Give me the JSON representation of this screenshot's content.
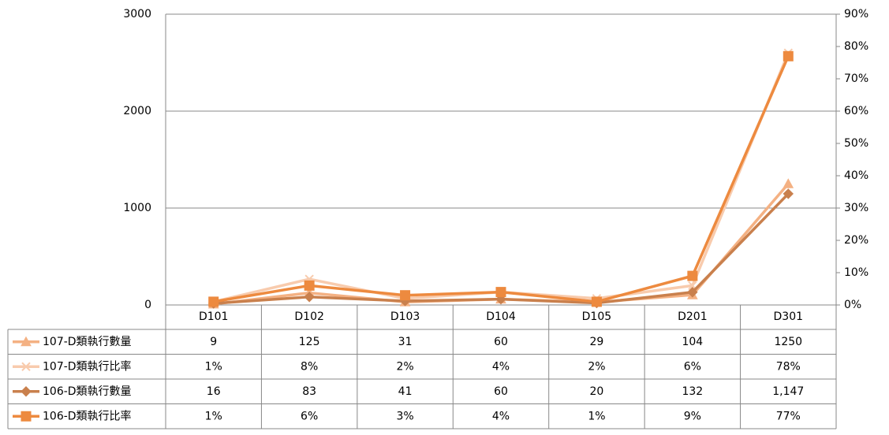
{
  "chart_data": {
    "type": "line",
    "categories": [
      "D101",
      "D102",
      "D103",
      "D104",
      "D105",
      "D201",
      "D301"
    ],
    "ylim": [
      0,
      3000
    ],
    "yticks": [
      0,
      1000,
      2000,
      3000
    ],
    "y2lim": [
      0,
      90
    ],
    "y2ticks": [
      {
        "value": 0,
        "label": "0%"
      },
      {
        "value": 10,
        "label": "10%"
      },
      {
        "value": 20,
        "label": "20%"
      },
      {
        "value": 30,
        "label": "30%"
      },
      {
        "value": 40,
        "label": "40%"
      },
      {
        "value": 50,
        "label": "50%"
      },
      {
        "value": 60,
        "label": "60%"
      },
      {
        "value": 70,
        "label": "70%"
      },
      {
        "value": 80,
        "label": "80%"
      },
      {
        "value": 90,
        "label": "90%"
      }
    ],
    "grid": true,
    "series": [
      {
        "name": "107-D類執行數量",
        "color": "#f4b183",
        "marker": "triangle",
        "values": [
          9,
          125,
          31,
          60,
          29,
          104,
          1250
        ]
      },
      {
        "name": "107-D類執行比率",
        "color": "#f8cbad",
        "marker": "x",
        "axis": "y2",
        "values": [
          1,
          8,
          2,
          4,
          2,
          6,
          78
        ],
        "value_labels": [
          "1%",
          "8%",
          "2%",
          "4%",
          "2%",
          "6%",
          "78%"
        ]
      },
      {
        "name": "106-D類執行數量",
        "color": "#c9804d",
        "marker": "diamond",
        "values": [
          16,
          83,
          41,
          60,
          20,
          132,
          1147
        ],
        "value_labels": [
          "16",
          "83",
          "41",
          "60",
          "20",
          "132",
          "1,147"
        ]
      },
      {
        "name": "106-D類執行比率",
        "color": "#ed8a3f",
        "marker": "square",
        "axis": "y2",
        "values": [
          1,
          6,
          3,
          4,
          1,
          9,
          77
        ],
        "value_labels": [
          "1%",
          "6%",
          "3%",
          "4%",
          "1%",
          "9%",
          "77%"
        ]
      }
    ]
  }
}
